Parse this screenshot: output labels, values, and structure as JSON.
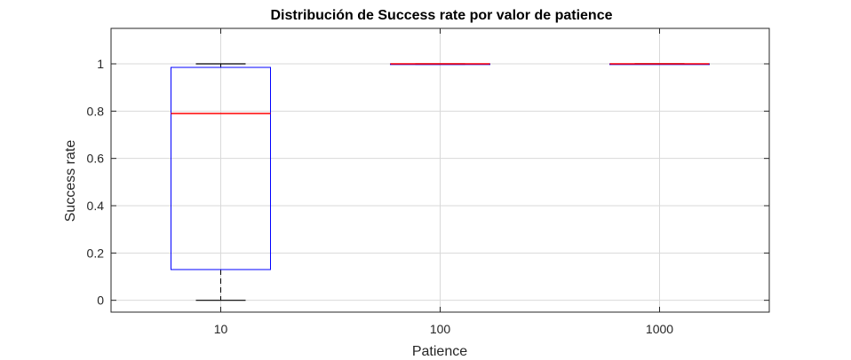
{
  "chart_data": {
    "type": "boxplot",
    "title": "Distribución de Success rate por valor de patience",
    "xlabel": "Patience",
    "ylabel": "Success rate",
    "categories": [
      "10",
      "100",
      "1000"
    ],
    "ylim": [
      -0.05,
      1.15
    ],
    "yticks": [
      0,
      0.2,
      0.4,
      0.6,
      0.8,
      1
    ],
    "ytick_labels": [
      "0",
      "0.2",
      "0.4",
      "0.6",
      "0.8",
      "1"
    ],
    "grid": true,
    "boxes": [
      {
        "category": "10",
        "min": 0,
        "q1": 0.13,
        "median": 0.79,
        "q3": 0.985,
        "max": 1
      },
      {
        "category": "100",
        "min": 0.998,
        "q1": 1,
        "median": 1,
        "q3": 1,
        "max": 1
      },
      {
        "category": "1000",
        "min": 1,
        "q1": 1,
        "median": 1,
        "q3": 1,
        "max": 1
      }
    ],
    "colors": {
      "box": "#0000ff",
      "median": "#ff0000",
      "whisker": "#000000",
      "grid": "#d9d9d9",
      "axes": "#262626"
    }
  }
}
